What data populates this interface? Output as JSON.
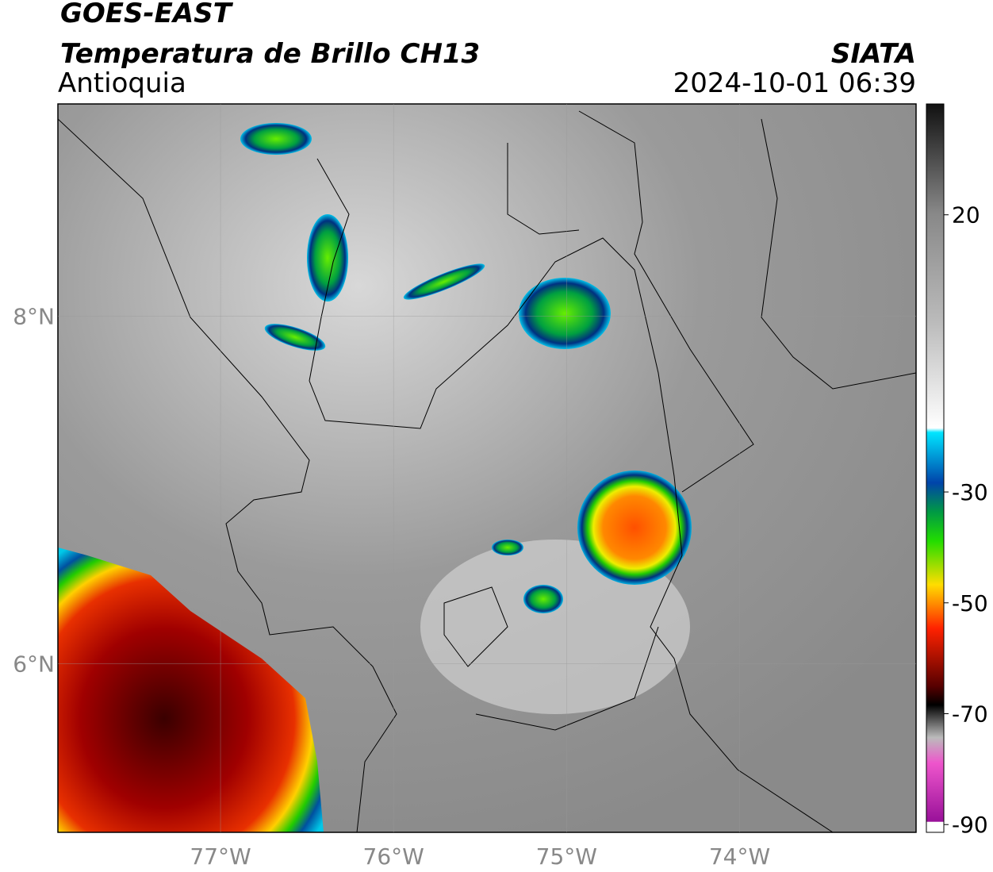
{
  "header": {
    "line1": "GOES-EAST",
    "line2": "Temperatura de Brillo CH13",
    "region": "Antioquia",
    "source": "SIATA",
    "datetime": "2024-10-01 06:39"
  },
  "map": {
    "xlim": [
      -77.94,
      -72.98
    ],
    "ylim": [
      5.03,
      9.22
    ],
    "xticks": [
      {
        "value": -77,
        "label": "77°W"
      },
      {
        "value": -76,
        "label": "76°W"
      },
      {
        "value": -75,
        "label": "75°W"
      },
      {
        "value": -74,
        "label": "74°W"
      }
    ],
    "yticks": [
      {
        "value": 6,
        "label": "6°N"
      },
      {
        "value": 8,
        "label": "8°N"
      }
    ]
  },
  "colorbar": {
    "lim": [
      -91.4,
      40
    ],
    "ticks": [
      20,
      -30,
      -50,
      -70,
      -90
    ]
  }
}
